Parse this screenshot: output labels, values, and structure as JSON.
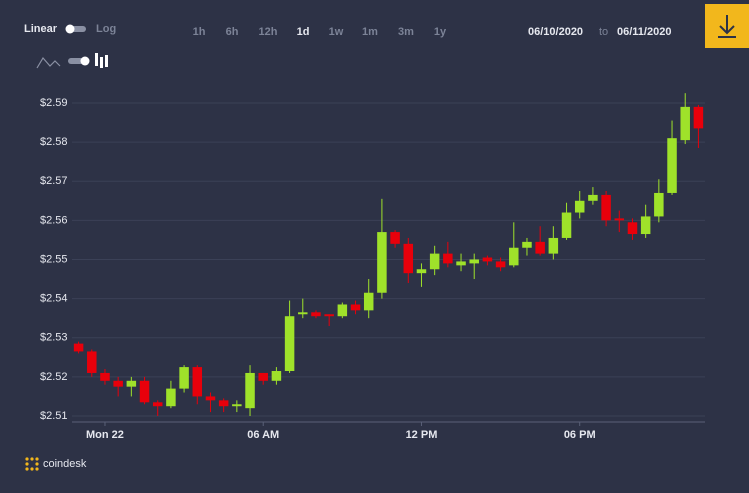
{
  "controls": {
    "scale_options": [
      "Linear",
      "Log"
    ],
    "ranges": [
      "1h",
      "6h",
      "12h",
      "1d",
      "1w",
      "1m",
      "3m",
      "1y"
    ],
    "selected_range": 3,
    "date_from": "06/10/2020",
    "date_sep": "to",
    "date_to": "06/11/2020"
  },
  "brand": "coindesk",
  "chart_data": {
    "type": "candlestick",
    "up_color": "#9fe22a",
    "down_color": "#e8000b",
    "grid": true,
    "categories": [
      null,
      null,
      "Mon 22",
      null,
      null,
      null,
      null,
      null,
      null,
      null,
      null,
      null,
      null,
      null,
      "06 AM",
      null,
      null,
      null,
      null,
      null,
      null,
      null,
      null,
      null,
      null,
      null,
      "12 PM",
      null,
      null,
      null,
      null,
      null,
      null,
      null,
      null,
      null,
      null,
      null,
      "06 PM",
      null,
      null,
      null,
      null,
      null,
      null,
      null,
      null,
      null
    ],
    "open": [
      2.5285,
      2.5265,
      2.521,
      2.519,
      2.5175,
      2.519,
      2.5135,
      2.5125,
      2.517,
      2.5225,
      2.515,
      2.514,
      2.5125,
      2.512,
      2.521,
      2.519,
      2.5215,
      2.536,
      2.5365,
      2.536,
      2.5355,
      2.5385,
      2.537,
      2.5415,
      2.557,
      2.554,
      2.5465,
      2.5475,
      2.5515,
      2.5485,
      2.549,
      2.5505,
      2.5495,
      2.5485,
      2.553,
      2.5545,
      2.5515,
      2.5555,
      2.562,
      2.565,
      2.5665,
      2.5605,
      2.5595,
      2.5565,
      2.561,
      2.567,
      2.5805,
      2.589
    ],
    "high": [
      2.529,
      2.527,
      2.522,
      2.52,
      2.52,
      2.52,
      2.514,
      2.519,
      2.523,
      2.523,
      2.516,
      2.5145,
      2.514,
      2.523,
      2.521,
      2.5225,
      2.5395,
      2.54,
      2.537,
      2.536,
      2.539,
      2.5395,
      2.545,
      2.5655,
      2.5575,
      2.5555,
      2.549,
      2.5535,
      2.5545,
      2.5515,
      2.5515,
      2.551,
      2.5505,
      2.5595,
      2.5555,
      2.5585,
      2.5585,
      2.5645,
      2.5675,
      2.5685,
      2.5675,
      2.5625,
      2.5605,
      2.564,
      2.5705,
      2.5855,
      2.5925,
      2.5895
    ],
    "low": [
      2.526,
      2.52,
      2.518,
      2.515,
      2.515,
      2.513,
      2.51,
      2.512,
      2.516,
      2.513,
      2.511,
      2.511,
      2.511,
      2.51,
      2.518,
      2.518,
      2.521,
      2.535,
      2.535,
      2.533,
      2.535,
      2.536,
      2.535,
      2.54,
      2.553,
      2.544,
      2.543,
      2.546,
      2.548,
      2.547,
      2.545,
      2.5485,
      2.547,
      2.548,
      2.551,
      2.551,
      2.55,
      2.555,
      2.5605,
      2.564,
      2.5585,
      2.557,
      2.555,
      2.5555,
      2.5595,
      2.5665,
      2.5795,
      2.5785
    ],
    "close": [
      2.5265,
      2.521,
      2.519,
      2.5175,
      2.519,
      2.5135,
      2.5125,
      2.517,
      2.5225,
      2.515,
      2.514,
      2.5125,
      2.513,
      2.521,
      2.519,
      2.5215,
      2.5355,
      2.5365,
      2.5355,
      2.5355,
      2.5385,
      2.537,
      2.5415,
      2.557,
      2.554,
      2.5465,
      2.5475,
      2.5515,
      2.549,
      2.5495,
      2.55,
      2.5495,
      2.548,
      2.553,
      2.5545,
      2.5515,
      2.5555,
      2.562,
      2.565,
      2.5665,
      2.56,
      2.56,
      2.5565,
      2.561,
      2.567,
      2.581,
      2.589,
      2.5835
    ],
    "ylim": [
      2.5077,
      2.5928
    ],
    "yticks": [
      {
        "value": 2.51,
        "label": "$2.51"
      },
      {
        "value": 2.52,
        "label": "$2.52"
      },
      {
        "value": 2.53,
        "label": "$2.53"
      },
      {
        "value": 2.54,
        "label": "$2.54"
      },
      {
        "value": 2.55,
        "label": "$2.55"
      },
      {
        "value": 2.56,
        "label": "$2.56"
      },
      {
        "value": 2.57,
        "label": "$2.57"
      },
      {
        "value": 2.58,
        "label": "$2.58"
      },
      {
        "value": 2.59,
        "label": "$2.59"
      }
    ]
  }
}
